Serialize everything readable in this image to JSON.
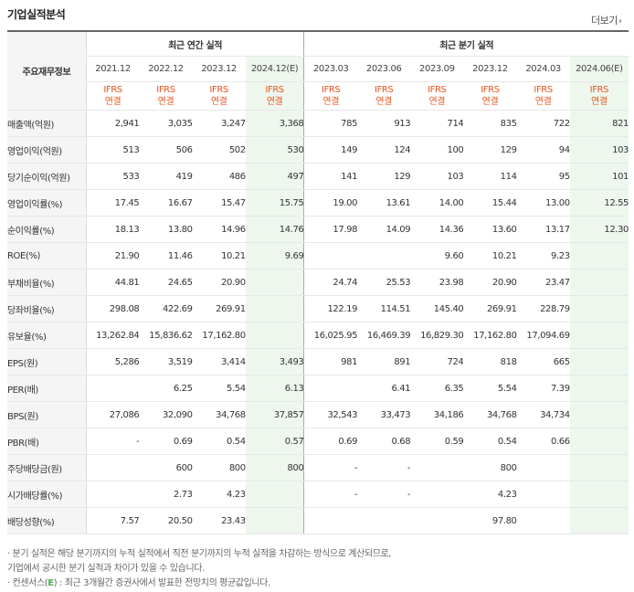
{
  "header": {
    "title": "기업실적분석",
    "more": "더보기",
    "more_chev": "›"
  },
  "table": {
    "corner_label": "주요재무정보",
    "annual_group": "최근 연간 실적",
    "quarter_group": "최근 분기 실적",
    "annual_periods": [
      "2021.12",
      "2022.12",
      "2023.12",
      "2024.12(E)"
    ],
    "quarter_periods": [
      "2023.03",
      "2023.06",
      "2023.09",
      "2023.12",
      "2024.03",
      "2024.06(E)"
    ],
    "ifrs_line1": "IFRS",
    "ifrs_line2": "연결",
    "rows": [
      {
        "label": "매출액(억원)",
        "values": [
          "2,941",
          "3,035",
          "3,247",
          "3,368",
          "785",
          "913",
          "714",
          "835",
          "722",
          "821"
        ]
      },
      {
        "label": "영업이익(억원)",
        "values": [
          "513",
          "506",
          "502",
          "530",
          "149",
          "124",
          "100",
          "129",
          "94",
          "103"
        ]
      },
      {
        "label": "당기순이익(억원)",
        "values": [
          "533",
          "419",
          "486",
          "497",
          "141",
          "129",
          "103",
          "114",
          "95",
          "101"
        ]
      },
      {
        "label": "영업이익률(%)",
        "values": [
          "17.45",
          "16.67",
          "15.47",
          "15.75",
          "19.00",
          "13.61",
          "14.00",
          "15.44",
          "13.00",
          "12.55"
        ]
      },
      {
        "label": "순이익률(%)",
        "values": [
          "18.13",
          "13.80",
          "14.96",
          "14.76",
          "17.98",
          "14.09",
          "14.36",
          "13.60",
          "13.17",
          "12.30"
        ]
      },
      {
        "label": "ROE(%)",
        "values": [
          "21.90",
          "11.46",
          "10.21",
          "9.69",
          "",
          "",
          "9.60",
          "10.21",
          "9.23",
          ""
        ]
      },
      {
        "label": "부채비율(%)",
        "values": [
          "44.81",
          "24.65",
          "20.90",
          "",
          "24.74",
          "25.53",
          "23.98",
          "20.90",
          "23.47",
          ""
        ]
      },
      {
        "label": "당좌비율(%)",
        "values": [
          "298.08",
          "422.69",
          "269.91",
          "",
          "122.19",
          "114.51",
          "145.40",
          "269.91",
          "228.79",
          ""
        ]
      },
      {
        "label": "유보율(%)",
        "values": [
          "13,262.84",
          "15,836.62",
          "17,162.80",
          "",
          "16,025.95",
          "16,469.39",
          "16,829.30",
          "17,162.80",
          "17,094.69",
          ""
        ]
      },
      {
        "label": "EPS(원)",
        "values": [
          "5,286",
          "3,519",
          "3,414",
          "3,493",
          "981",
          "891",
          "724",
          "818",
          "665",
          ""
        ]
      },
      {
        "label": "PER(배)",
        "values": [
          "",
          "6.25",
          "5.54",
          "6.13",
          "",
          "6.41",
          "6.35",
          "5.54",
          "7.39",
          ""
        ]
      },
      {
        "label": "BPS(원)",
        "values": [
          "27,086",
          "32,090",
          "34,768",
          "37,857",
          "32,543",
          "33,473",
          "34,186",
          "34,768",
          "34,734",
          ""
        ]
      },
      {
        "label": "PBR(배)",
        "values": [
          "-",
          "0.69",
          "0.54",
          "0.57",
          "0.69",
          "0.68",
          "0.59",
          "0.54",
          "0.66",
          ""
        ]
      },
      {
        "label": "주당배당금(원)",
        "values": [
          "",
          "600",
          "800",
          "800",
          "-",
          "-",
          "",
          "800",
          "",
          ""
        ]
      },
      {
        "label": "시가배당률(%)",
        "values": [
          "",
          "2.73",
          "4.23",
          "",
          "-",
          "-",
          "",
          "4.23",
          "",
          ""
        ]
      },
      {
        "label": "배당성향(%)",
        "values": [
          "7.57",
          "20.50",
          "23.43",
          "",
          "",
          "",
          "",
          "97.80",
          "",
          ""
        ]
      }
    ]
  },
  "notes": {
    "line1": "· 분기 실적은 해당 분기까지의 누적 실적에서 직전 분기까지의 누적 실적을 차감하는 방식으로 계산되므로,",
    "line2": "  기업에서 공시한 분기 실적과 차이가 있을 수 있습니다.",
    "line3a": "· 컨센서스(",
    "line3e": "E",
    "line3b": ") : 최근 3개월간 증권사에서 발표한 전망치의 평균값입니다."
  },
  "colors": {
    "accent_orange": "#e8541e",
    "estimate_bg": "#eef7ee",
    "estimate_mark": "#4caf50"
  }
}
